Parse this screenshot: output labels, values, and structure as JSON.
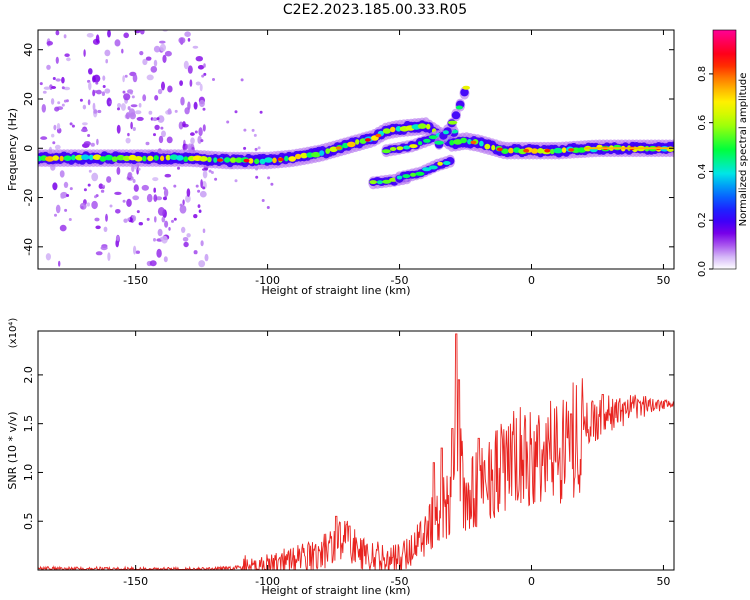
{
  "title": "C2E2.2023.185.00.33.R05",
  "colors": {
    "snr_line": "#e8231f",
    "axis": "#000000"
  },
  "chart_data": [
    {
      "type": "heatmap",
      "xlabel": "Height of straight line (km)",
      "ylabel": "Frequency (Hz)",
      "xlim": [
        -187,
        54
      ],
      "ylim": [
        -49,
        48
      ],
      "xticks": [
        -150,
        -100,
        -50,
        0,
        50
      ],
      "yticks": [
        -40,
        -20,
        0,
        20,
        40
      ],
      "colorbar": {
        "label": "Normalized spectral amplitude",
        "range": [
          0.0,
          0.98
        ],
        "ticks": [
          "0.0",
          "0.2",
          "0.4",
          "0.6",
          "0.8"
        ],
        "colormap": "rainbow (white-violet-blue-cyan-green-yellow-orange-red-pink)"
      },
      "main_trace": {
        "x": [
          -187,
          -160,
          -130,
          -115,
          -100,
          -90,
          -80,
          -70,
          -60,
          -55,
          -50,
          -40,
          -30,
          -25,
          -20,
          -10,
          0,
          10,
          25,
          54
        ],
        "y": [
          -4,
          -4,
          -4,
          -5,
          -5,
          -4,
          -2,
          1,
          4,
          7,
          8,
          9,
          2,
          3,
          2,
          -1,
          -1,
          -1,
          0,
          0
        ]
      },
      "secondary_traces": [
        {
          "x": [
            -55,
            -45,
            -35,
            -28
          ],
          "y": [
            -1,
            1,
            5,
            7
          ]
        },
        {
          "x": [
            -35,
            -30,
            -26,
            -24
          ],
          "y": [
            2,
            10,
            20,
            28
          ]
        },
        {
          "x": [
            -60,
            -52,
            -47
          ],
          "y": [
            -14,
            -13,
            -12
          ]
        },
        {
          "x": [
            -50,
            -42,
            -36,
            -30
          ],
          "y": [
            -12,
            -10,
            -7,
            -5
          ]
        }
      ]
    },
    {
      "type": "line",
      "xlabel": "Height of straight line (km)",
      "ylabel": "SNR (10 * v/v)",
      "y_multiplier": "(x10⁴)",
      "xlim": [
        -187,
        54
      ],
      "ylim": [
        0,
        2.45
      ],
      "xticks": [
        -150,
        -100,
        -50,
        0,
        50
      ],
      "yticks": [
        0.5,
        1.0,
        1.5,
        2.0
      ],
      "envelope": {
        "x": [
          -187,
          -150,
          -120,
          -110,
          -100,
          -90,
          -80,
          -75,
          -70,
          -65,
          -60,
          -55,
          -50,
          -45,
          -40,
          -35,
          -30,
          -28,
          -25,
          -20,
          -15,
          -10,
          -5,
          0,
          5,
          10,
          15,
          20,
          25,
          30,
          40,
          50,
          54
        ],
        "y": [
          0.02,
          0.01,
          0.01,
          0.03,
          0.06,
          0.12,
          0.18,
          0.3,
          0.35,
          0.2,
          0.15,
          0.12,
          0.13,
          0.25,
          0.45,
          0.6,
          0.8,
          1.3,
          0.7,
          0.9,
          1.05,
          1.1,
          1.2,
          1.15,
          1.25,
          1.3,
          1.4,
          1.5,
          1.58,
          1.62,
          1.68,
          1.72,
          1.72
        ]
      },
      "peaks": [
        {
          "x": -28.5,
          "y": 2.42
        },
        {
          "x": -27.5,
          "y": 1.95
        },
        {
          "x": -30,
          "y": 1.45
        },
        {
          "x": -34,
          "y": 1.25
        },
        {
          "x": -37,
          "y": 1.1
        },
        {
          "x": -74,
          "y": 0.55
        },
        {
          "x": -69,
          "y": 0.45
        },
        {
          "x": -20,
          "y": 1.35
        },
        {
          "x": 15,
          "y": 1.6
        },
        {
          "x": 27,
          "y": 1.8
        }
      ]
    }
  ]
}
